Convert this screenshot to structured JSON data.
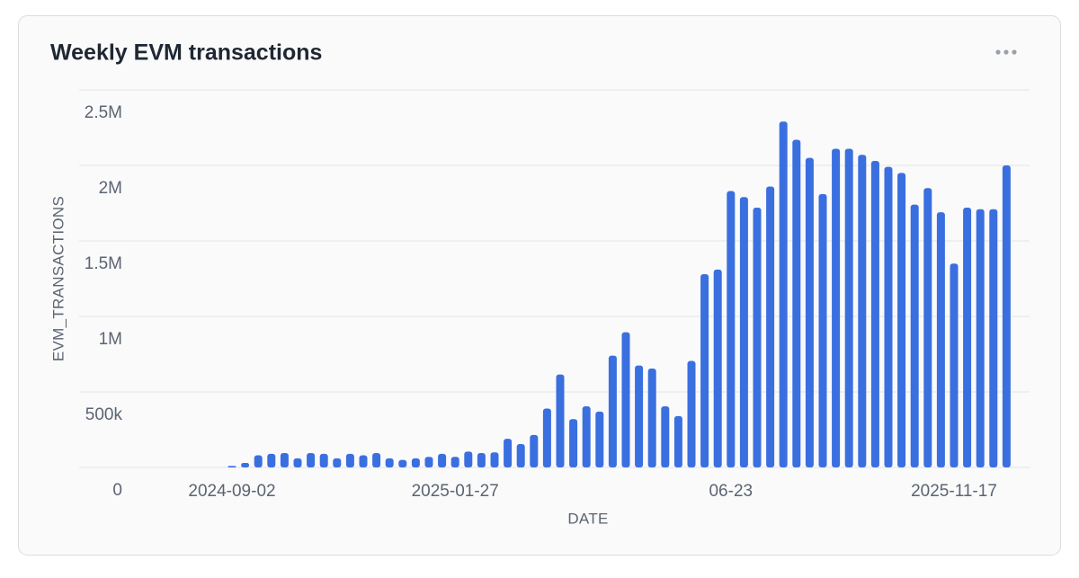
{
  "chart_data": {
    "type": "bar",
    "title": "Weekly EVM transactions",
    "x_label": "DATE",
    "y_label": "EVM_TRANSACTIONS",
    "categories": [
      "2024-09-02",
      null,
      null,
      null,
      null,
      null,
      null,
      null,
      null,
      null,
      null,
      null,
      null,
      null,
      null,
      null,
      null,
      "2025-01-27",
      null,
      null,
      null,
      null,
      null,
      null,
      null,
      null,
      null,
      null,
      null,
      null,
      null,
      null,
      null,
      null,
      null,
      null,
      null,
      null,
      "06-23",
      null,
      null,
      null,
      null,
      null,
      null,
      null,
      null,
      null,
      null,
      null,
      null,
      null,
      null,
      null,
      null,
      "2025-11-17",
      null,
      null,
      null,
      null
    ],
    "values": [
      10000,
      30000,
      80000,
      90000,
      95000,
      60000,
      95000,
      90000,
      60000,
      90000,
      80000,
      95000,
      60000,
      50000,
      60000,
      70000,
      90000,
      70000,
      105000,
      95000,
      100000,
      190000,
      155000,
      215000,
      390000,
      615000,
      320000,
      405000,
      370000,
      740000,
      895000,
      675000,
      655000,
      405000,
      340000,
      705000,
      1280000,
      1310000,
      1830000,
      1790000,
      1720000,
      1860000,
      2290000,
      2170000,
      2050000,
      1810000,
      2110000,
      2110000,
      2070000,
      2030000,
      1990000,
      1950000,
      1740000,
      1850000,
      1690000,
      1350000,
      1720000,
      1710000,
      1710000,
      2000000
    ],
    "color": "#3a6fe0",
    "ylim": [
      0,
      2500000
    ],
    "yticks": [
      0,
      {
        "value": 500000,
        "label": "500k"
      },
      {
        "value": 1000000,
        "label": "1M"
      },
      {
        "value": 1500000,
        "label": "1.5M"
      },
      {
        "value": 2000000,
        "label": "2M"
      },
      {
        "value": 2500000,
        "label": "2.5M"
      }
    ],
    "grid": true
  }
}
